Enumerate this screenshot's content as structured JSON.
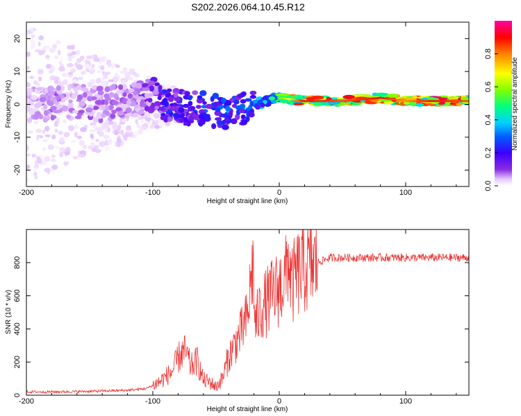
{
  "figure_title": "S202.2026.064.10.45.R12",
  "chart_data": [
    {
      "type": "heatmap",
      "title": "S202.2026.064.10.45.R12",
      "xlabel": "Height of straight line (km)",
      "ylabel": "Frequency (Hz)",
      "xlim": [
        -200,
        150
      ],
      "ylim": [
        -25,
        25
      ],
      "xticks": [
        -200,
        -100,
        0,
        100
      ],
      "yticks": [
        -20,
        -10,
        0,
        10,
        20
      ],
      "colorbar": {
        "label": "Normalized spectral amplitude",
        "range": [
          0,
          1
        ],
        "ticks": [
          0.0,
          0.2,
          0.4,
          0.6,
          0.8
        ],
        "tick_labels": [
          "0.0",
          "0.2",
          "0.4",
          "0.6",
          "0.8"
        ],
        "colormap": [
          "#ffffff",
          "#e6c8ff",
          "#8a2be2",
          "#3b00ff",
          "#0060ff",
          "#00d0ff",
          "#00ff80",
          "#80ff00",
          "#ffff00",
          "#ff8000",
          "#ff0000",
          "#ff00a0"
        ]
      },
      "ridge": {
        "x": [
          -200,
          -180,
          -160,
          -140,
          -120,
          -100,
          -90,
          -80,
          -70,
          -60,
          -50,
          -40,
          -30,
          -20,
          -10,
          0,
          20,
          50,
          80,
          100,
          120,
          150
        ],
        "frequency": [
          0,
          0,
          1,
          0,
          1,
          3,
          0,
          -1,
          -1,
          -1,
          -2,
          -4,
          -1,
          0,
          1,
          2,
          1,
          1,
          2,
          1,
          1,
          1
        ],
        "amplitude": [
          0.1,
          0.15,
          0.15,
          0.15,
          0.15,
          0.2,
          0.3,
          0.3,
          0.3,
          0.35,
          0.35,
          0.35,
          0.35,
          0.4,
          0.5,
          0.6,
          0.9,
          0.85,
          0.9,
          0.8,
          0.9,
          0.85
        ]
      }
    },
    {
      "type": "line",
      "xlabel": "Height of straight line (km)",
      "ylabel": "SNR (10 * v/v)",
      "xlim": [
        -200,
        150
      ],
      "ylim": [
        0,
        1000
      ],
      "xticks": [
        -200,
        -100,
        0,
        100
      ],
      "yticks": [
        0,
        200,
        400,
        600,
        800
      ],
      "color": "#ee3333",
      "series": [
        {
          "name": "SNR",
          "x": [
            -200,
            -180,
            -160,
            -140,
            -120,
            -105,
            -95,
            -85,
            -78,
            -74,
            -70,
            -65,
            -60,
            -55,
            -50,
            -45,
            -40,
            -35,
            -30,
            -25,
            -21,
            -19,
            -15,
            -10,
            -5,
            0,
            5,
            7,
            10,
            13,
            18,
            25,
            30,
            40,
            60,
            80,
            100,
            120,
            150
          ],
          "y": [
            20,
            20,
            22,
            25,
            30,
            40,
            80,
            140,
            250,
            260,
            170,
            210,
            90,
            80,
            50,
            100,
            230,
            310,
            380,
            470,
            800,
            420,
            520,
            560,
            610,
            650,
            700,
            850,
            650,
            720,
            760,
            780,
            800,
            830,
            830,
            830,
            830,
            830,
            830
          ]
        }
      ]
    }
  ]
}
